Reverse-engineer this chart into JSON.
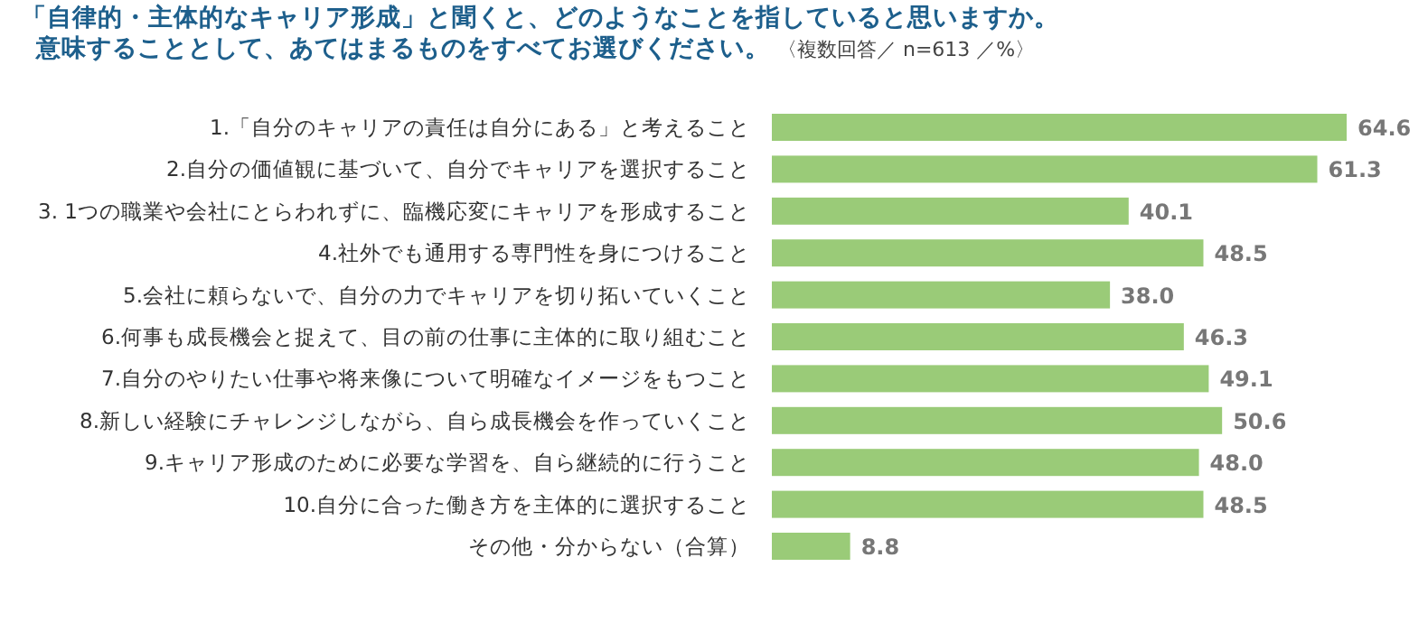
{
  "chart_data": {
    "type": "bar",
    "orientation": "horizontal",
    "title": "「自律的・主体的なキャリア形成」と聞くと、どのようなことを指していると思いますか。",
    "subtitle": "意味することとして、あてはまるものをすべてお選びください。",
    "annotations": [
      "〈複数回答／ n=613 ／%〉"
    ],
    "categories": [
      "1.「自分のキャリアの責任は自分にある」と考えること",
      "2.自分の価値観に基づいて、自分でキャリアを選択すること",
      "3. 1つの職業や会社にとらわれずに、臨機応変にキャリアを形成すること",
      "4.社外でも通用する専門性を身につけること",
      "5.会社に頼らないで、自分の力でキャリアを切り拓いていくこと",
      "6.何事も成長機会と捉えて、目の前の仕事に主体的に取り組むこと",
      "7.自分のやりたい仕事や将来像について明確なイメージをもつこと",
      "8.新しい経験にチャレンジしながら、自ら成長機会を作っていくこと",
      "9.キャリア形成のために必要な学習を、自ら継続的に行うこと",
      "10.自分に合った働き方を主体的に選択すること",
      "その他・分からない（合算）"
    ],
    "values": [
      64.6,
      61.3,
      40.1,
      48.5,
      38.0,
      46.3,
      49.1,
      50.6,
      48.0,
      48.5,
      8.8
    ],
    "value_labels": [
      "64.6",
      "61.3",
      "40.1",
      "48.5",
      "38.0",
      "46.3",
      "49.1",
      "50.6",
      "48.0",
      "48.5",
      "8.8"
    ],
    "color": "#9acb78"
  }
}
